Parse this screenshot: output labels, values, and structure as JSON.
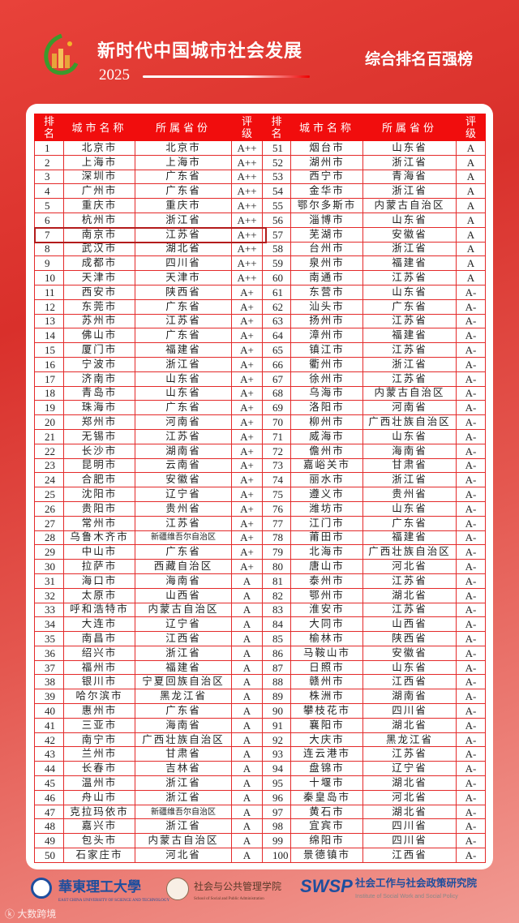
{
  "header": {
    "title": "新时代中国城市社会发展",
    "year": "2025",
    "subtitle": "综合排名百强榜"
  },
  "colors": {
    "header_red": "#f10d0d",
    "border_red": "#e42a2a",
    "highlight": "#b31b1b",
    "brand_blue": "#1d4e9e"
  },
  "columns": [
    "排名",
    "城市名称",
    "所属省份",
    "评级"
  ],
  "highlighted_rank": 7,
  "rows": [
    [
      "1",
      "北京市",
      "北京市",
      "A++"
    ],
    [
      "2",
      "上海市",
      "上海市",
      "A++"
    ],
    [
      "3",
      "深圳市",
      "广东省",
      "A++"
    ],
    [
      "4",
      "广州市",
      "广东省",
      "A++"
    ],
    [
      "5",
      "重庆市",
      "重庆市",
      "A++"
    ],
    [
      "6",
      "杭州市",
      "浙江省",
      "A++"
    ],
    [
      "7",
      "南京市",
      "江苏省",
      "A++"
    ],
    [
      "8",
      "武汉市",
      "湖北省",
      "A++"
    ],
    [
      "9",
      "成都市",
      "四川省",
      "A++"
    ],
    [
      "10",
      "天津市",
      "天津市",
      "A++"
    ],
    [
      "11",
      "西安市",
      "陕西省",
      "A+"
    ],
    [
      "12",
      "东莞市",
      "广东省",
      "A+"
    ],
    [
      "13",
      "苏州市",
      "江苏省",
      "A+"
    ],
    [
      "14",
      "佛山市",
      "广东省",
      "A+"
    ],
    [
      "15",
      "厦门市",
      "福建省",
      "A+"
    ],
    [
      "16",
      "宁波市",
      "浙江省",
      "A+"
    ],
    [
      "17",
      "济南市",
      "山东省",
      "A+"
    ],
    [
      "18",
      "青岛市",
      "山东省",
      "A+"
    ],
    [
      "19",
      "珠海市",
      "广东省",
      "A+"
    ],
    [
      "20",
      "郑州市",
      "河南省",
      "A+"
    ],
    [
      "21",
      "无锡市",
      "江苏省",
      "A+"
    ],
    [
      "22",
      "长沙市",
      "湖南省",
      "A+"
    ],
    [
      "23",
      "昆明市",
      "云南省",
      "A+"
    ],
    [
      "24",
      "合肥市",
      "安徽省",
      "A+"
    ],
    [
      "25",
      "沈阳市",
      "辽宁省",
      "A+"
    ],
    [
      "26",
      "贵阳市",
      "贵州省",
      "A+"
    ],
    [
      "27",
      "常州市",
      "江苏省",
      "A+"
    ],
    [
      "28",
      "乌鲁木齐市",
      "新疆维吾尔自治区",
      "A+"
    ],
    [
      "29",
      "中山市",
      "广东省",
      "A+"
    ],
    [
      "30",
      "拉萨市",
      "西藏自治区",
      "A+"
    ],
    [
      "31",
      "海口市",
      "海南省",
      "A"
    ],
    [
      "32",
      "太原市",
      "山西省",
      "A"
    ],
    [
      "33",
      "呼和浩特市",
      "内蒙古自治区",
      "A"
    ],
    [
      "34",
      "大连市",
      "辽宁省",
      "A"
    ],
    [
      "35",
      "南昌市",
      "江西省",
      "A"
    ],
    [
      "36",
      "绍兴市",
      "浙江省",
      "A"
    ],
    [
      "37",
      "福州市",
      "福建省",
      "A"
    ],
    [
      "38",
      "银川市",
      "宁夏回族自治区",
      "A"
    ],
    [
      "39",
      "哈尔滨市",
      "黑龙江省",
      "A"
    ],
    [
      "40",
      "惠州市",
      "广东省",
      "A"
    ],
    [
      "41",
      "三亚市",
      "海南省",
      "A"
    ],
    [
      "42",
      "南宁市",
      "广西壮族自治区",
      "A"
    ],
    [
      "43",
      "兰州市",
      "甘肃省",
      "A"
    ],
    [
      "44",
      "长春市",
      "吉林省",
      "A"
    ],
    [
      "45",
      "温州市",
      "浙江省",
      "A"
    ],
    [
      "46",
      "舟山市",
      "浙江省",
      "A"
    ],
    [
      "47",
      "克拉玛依市",
      "新疆维吾尔自治区",
      "A"
    ],
    [
      "48",
      "嘉兴市",
      "浙江省",
      "A"
    ],
    [
      "49",
      "包头市",
      "内蒙古自治区",
      "A"
    ],
    [
      "50",
      "石家庄市",
      "河北省",
      "A"
    ],
    [
      "51",
      "烟台市",
      "山东省",
      "A"
    ],
    [
      "52",
      "湖州市",
      "浙江省",
      "A"
    ],
    [
      "53",
      "西宁市",
      "青海省",
      "A"
    ],
    [
      "54",
      "金华市",
      "浙江省",
      "A"
    ],
    [
      "55",
      "鄂尔多斯市",
      "内蒙古自治区",
      "A"
    ],
    [
      "56",
      "淄博市",
      "山东省",
      "A"
    ],
    [
      "57",
      "芜湖市",
      "安徽省",
      "A"
    ],
    [
      "58",
      "台州市",
      "浙江省",
      "A"
    ],
    [
      "59",
      "泉州市",
      "福建省",
      "A"
    ],
    [
      "60",
      "南通市",
      "江苏省",
      "A"
    ],
    [
      "61",
      "东营市",
      "山东省",
      "A-"
    ],
    [
      "62",
      "汕头市",
      "广东省",
      "A-"
    ],
    [
      "63",
      "扬州市",
      "江苏省",
      "A-"
    ],
    [
      "64",
      "漳州市",
      "福建省",
      "A-"
    ],
    [
      "65",
      "镇江市",
      "江苏省",
      "A-"
    ],
    [
      "66",
      "衢州市",
      "浙江省",
      "A-"
    ],
    [
      "67",
      "徐州市",
      "江苏省",
      "A-"
    ],
    [
      "68",
      "乌海市",
      "内蒙古自治区",
      "A-"
    ],
    [
      "69",
      "洛阳市",
      "河南省",
      "A-"
    ],
    [
      "70",
      "柳州市",
      "广西壮族自治区",
      "A-"
    ],
    [
      "71",
      "威海市",
      "山东省",
      "A-"
    ],
    [
      "72",
      "儋州市",
      "海南省",
      "A-"
    ],
    [
      "73",
      "嘉峪关市",
      "甘肃省",
      "A-"
    ],
    [
      "74",
      "丽水市",
      "浙江省",
      "A-"
    ],
    [
      "75",
      "遵义市",
      "贵州省",
      "A-"
    ],
    [
      "76",
      "潍坊市",
      "山东省",
      "A-"
    ],
    [
      "77",
      "江门市",
      "广东省",
      "A-"
    ],
    [
      "78",
      "莆田市",
      "福建省",
      "A-"
    ],
    [
      "79",
      "北海市",
      "广西壮族自治区",
      "A-"
    ],
    [
      "80",
      "唐山市",
      "河北省",
      "A-"
    ],
    [
      "81",
      "泰州市",
      "江苏省",
      "A-"
    ],
    [
      "82",
      "鄂州市",
      "湖北省",
      "A-"
    ],
    [
      "83",
      "淮安市",
      "江苏省",
      "A-"
    ],
    [
      "84",
      "大同市",
      "山西省",
      "A-"
    ],
    [
      "85",
      "榆林市",
      "陕西省",
      "A-"
    ],
    [
      "86",
      "马鞍山市",
      "安徽省",
      "A-"
    ],
    [
      "87",
      "日照市",
      "山东省",
      "A-"
    ],
    [
      "88",
      "赣州市",
      "江西省",
      "A-"
    ],
    [
      "89",
      "株洲市",
      "湖南省",
      "A-"
    ],
    [
      "90",
      "攀枝花市",
      "四川省",
      "A-"
    ],
    [
      "91",
      "襄阳市",
      "湖北省",
      "A-"
    ],
    [
      "92",
      "大庆市",
      "黑龙江省",
      "A-"
    ],
    [
      "93",
      "连云港市",
      "江苏省",
      "A-"
    ],
    [
      "94",
      "盘锦市",
      "辽宁省",
      "A-"
    ],
    [
      "95",
      "十堰市",
      "湖北省",
      "A-"
    ],
    [
      "96",
      "秦皇岛市",
      "河北省",
      "A-"
    ],
    [
      "97",
      "黄石市",
      "湖北省",
      "A-"
    ],
    [
      "98",
      "宜宾市",
      "四川省",
      "A-"
    ],
    [
      "99",
      "绵阳市",
      "四川省",
      "A-"
    ],
    [
      "100",
      "景德镇市",
      "江西省",
      "A-"
    ]
  ],
  "footer": {
    "ecust_cn": "華東理工大學",
    "ecust_en": "EAST CHINA UNIVERSITY OF SCIENCE AND TECHNOLOGY",
    "school_cn": "社会与公共管理学院",
    "school_en": "School of Social and Public Administration",
    "swsp_logo": "SWSP",
    "institute_cn": "社会工作与社会政策研究院",
    "institute_en": "Institute of Social Work and Social Policy",
    "watermark": "大数跨境"
  }
}
